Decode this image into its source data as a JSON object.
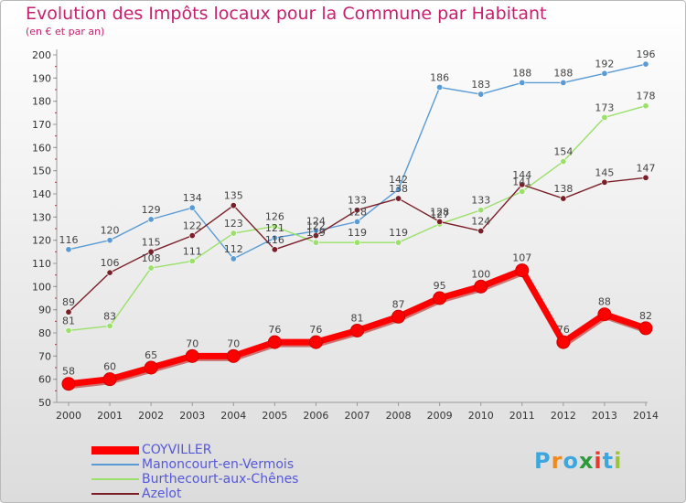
{
  "header": {
    "title": "Evolution des Impôts locaux pour la Commune par Habitant",
    "subtitle": "(en € et par an)"
  },
  "logo": {
    "text": "Proxiti",
    "letters": [
      "P",
      "r",
      "o",
      "x",
      "i",
      "t",
      "i"
    ],
    "colors": [
      "#3da6de",
      "#f28a1a",
      "#3da6de",
      "#2a9a3a",
      "#e6392e",
      "#3da6de",
      "#9ac53b"
    ]
  },
  "chart_data": {
    "type": "line",
    "title": "Evolution des Impôts locaux pour la Commune par Habitant",
    "subtitle": "(en € et par an)",
    "xlabel": "",
    "ylabel": "",
    "ylim": [
      50,
      200
    ],
    "yticks": [
      50,
      60,
      70,
      80,
      90,
      100,
      110,
      120,
      130,
      140,
      150,
      160,
      170,
      180,
      190,
      200
    ],
    "x": [
      2000,
      2001,
      2002,
      2003,
      2004,
      2005,
      2006,
      2007,
      2008,
      2009,
      2010,
      2011,
      2012,
      2013,
      2014
    ],
    "grid": false,
    "legend": "bottom-left",
    "series": [
      {
        "name": "COYVILLER",
        "color": "#ff0000",
        "emphasis": true,
        "values": [
          58,
          60,
          65,
          70,
          70,
          76,
          76,
          81,
          87,
          95,
          100,
          107,
          76,
          88,
          82
        ],
        "labels": [
          "58",
          "60",
          "65",
          "70",
          "70",
          "76",
          "76",
          "81",
          "87",
          "95",
          "100",
          "107",
          "76",
          "88",
          "82"
        ]
      },
      {
        "name": "Manoncourt-en-Vermois",
        "color": "#5a9bd5",
        "values": [
          116,
          120,
          129,
          134,
          112,
          121,
          124,
          128,
          142,
          186,
          183,
          188,
          188,
          192,
          196
        ],
        "labels": [
          "116",
          "120",
          "129",
          "134",
          "112",
          "121",
          "124",
          "128",
          "142",
          "186",
          "183",
          "188",
          "188",
          "192",
          "196"
        ]
      },
      {
        "name": "Burthecourt-aux-Chênes",
        "color": "#9ae06a",
        "values": [
          81,
          83,
          108,
          111,
          123,
          126,
          119,
          119,
          119,
          127,
          133,
          141,
          154,
          173,
          178
        ],
        "labels": [
          "81",
          "83",
          "108",
          "111",
          "123",
          "126",
          "119",
          "119",
          "119",
          "127",
          "133",
          "141",
          "154",
          "173",
          "178"
        ]
      },
      {
        "name": "Azelot",
        "color": "#7a1f28",
        "values": [
          89,
          106,
          115,
          122,
          135,
          116,
          122,
          133,
          138,
          128,
          124,
          144,
          138,
          145,
          147
        ],
        "labels": [
          "89",
          "106",
          "115",
          "122",
          "135",
          "116",
          "122",
          "133",
          "138",
          "128",
          "124",
          "144",
          "138",
          "145",
          "147"
        ]
      }
    ]
  }
}
